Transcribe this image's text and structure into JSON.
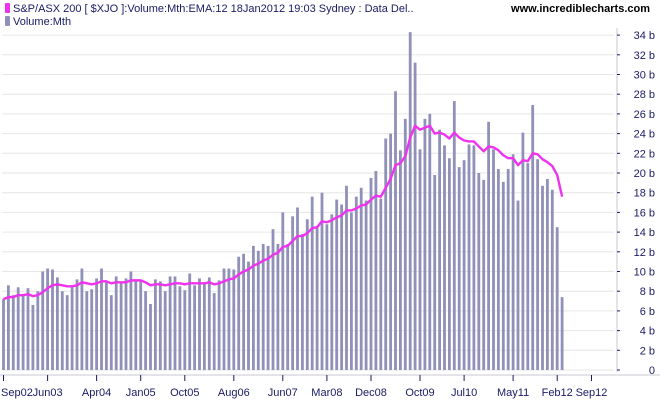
{
  "header": {
    "legend_line1": "S&P/ASX 200 [ $XJO ]:Volume:Mth:EMA:12   18Jan2012 19:03 Sydney : Data Del..",
    "legend_line2": "Volume:Mth",
    "watermark": "www.incrediblecharts.com"
  },
  "colors": {
    "bar": "#9090b8",
    "ema": "#ee33ee",
    "grid": "#e6e6e6",
    "axis_text": "#1a1a66",
    "tick_mark": "#1a1a66"
  },
  "chart_data": {
    "type": "bar",
    "ylabel": "",
    "xlabel": "",
    "ylim": [
      0,
      35
    ],
    "y_unit_suffix": " b",
    "yticks": [
      0,
      2,
      4,
      6,
      8,
      10,
      12,
      14,
      16,
      18,
      20,
      22,
      24,
      26,
      28,
      30,
      32,
      34
    ],
    "ytick_labels": [
      "0",
      "2 b",
      "4 b",
      "6 b",
      "8 b",
      "10 b",
      "12 b",
      "14 b",
      "16 b",
      "18 b",
      "20 b",
      "22 b",
      "24 b",
      "26 b",
      "28 b",
      "30 b",
      "32 b",
      "34 b"
    ],
    "xticks": [
      {
        "label": "Sep02",
        "index": 0
      },
      {
        "label": "Jun03",
        "index": 9
      },
      {
        "label": "Apr04",
        "index": 19
      },
      {
        "label": "Jan05",
        "index": 28
      },
      {
        "label": "Oct05",
        "index": 37
      },
      {
        "label": "Aug06",
        "index": 47
      },
      {
        "label": "Jun07",
        "index": 57
      },
      {
        "label": "Mar08",
        "index": 66
      },
      {
        "label": "Dec08",
        "index": 75
      },
      {
        "label": "Oct09",
        "index": 85
      },
      {
        "label": "Jul10",
        "index": 94
      },
      {
        "label": "May11",
        "index": 104
      },
      {
        "label": "Feb12",
        "index": 113
      },
      {
        "label": "Sep12",
        "index": 120
      }
    ],
    "grid": true,
    "series": [
      {
        "name": "Volume:Mth",
        "type": "bar",
        "values": [
          7.2,
          8.6,
          7.6,
          8.4,
          7.6,
          8.3,
          6.6,
          8.0,
          10.0,
          10.3,
          10.2,
          9.4,
          8.0,
          7.6,
          8.4,
          9.2,
          10.3,
          8.0,
          8.2,
          9.3,
          10.3,
          9.0,
          7.6,
          9.5,
          8.8,
          9.3,
          10.0,
          9.0,
          9.1,
          8.0,
          6.7,
          9.2,
          9.0,
          8.0,
          9.5,
          9.5,
          8.5,
          8.1,
          9.8,
          8.6,
          9.3,
          8.8,
          9.4,
          7.8,
          9.1,
          10.3,
          10.3,
          10.2,
          11.5,
          11.8,
          11.0,
          12.6,
          12.1,
          12.8,
          12.6,
          14.3,
          12.8,
          16.0,
          12.8,
          15.6,
          16.5,
          13.8,
          15.3,
          17.6,
          14.5,
          18.0,
          14.8,
          15.8,
          17.3,
          16.8,
          18.7,
          16.0,
          17.6,
          18.5,
          17.2,
          19.5,
          20.2,
          17.4,
          23.5,
          24.0,
          28.3,
          22.3,
          25.5,
          34.3,
          31.2,
          22.4,
          25.5,
          26.0,
          19.8,
          24.4,
          22.8,
          21.5,
          27.3,
          20.6,
          21.3,
          22.9,
          22.8,
          20.0,
          19.3,
          25.2,
          22.4,
          20.4,
          19.1,
          20.4,
          21.9,
          17.2,
          24.1,
          21.0,
          26.9,
          21.4,
          18.7,
          19.4,
          18.3,
          14.5,
          7.4
        ]
      },
      {
        "name": "S&P/ASX 200 [ $XJO ]:Volume:Mth:EMA:12",
        "type": "line",
        "values": [
          7.2,
          7.4,
          7.4,
          7.6,
          7.6,
          7.7,
          7.5,
          7.6,
          7.9,
          8.3,
          8.6,
          8.7,
          8.6,
          8.5,
          8.5,
          8.6,
          8.9,
          8.8,
          8.7,
          8.8,
          9.0,
          9.0,
          8.8,
          8.9,
          8.9,
          8.9,
          9.1,
          9.1,
          9.1,
          8.9,
          8.6,
          8.7,
          8.7,
          8.6,
          8.7,
          8.8,
          8.8,
          8.7,
          8.8,
          8.8,
          8.8,
          8.8,
          8.9,
          8.7,
          8.8,
          9.0,
          9.2,
          9.3,
          9.7,
          10.0,
          10.2,
          10.6,
          10.8,
          11.1,
          11.3,
          11.7,
          11.9,
          12.5,
          12.6,
          13.1,
          13.6,
          13.6,
          13.9,
          14.4,
          14.5,
          15.1,
          15.0,
          15.2,
          15.5,
          15.7,
          16.2,
          16.2,
          16.4,
          16.7,
          16.8,
          17.3,
          17.7,
          17.6,
          18.5,
          19.4,
          20.8,
          21.0,
          21.7,
          23.6,
          24.8,
          24.4,
          24.6,
          24.8,
          24.0,
          24.1,
          23.9,
          23.5,
          24.1,
          23.6,
          23.3,
          23.2,
          23.2,
          22.7,
          22.2,
          22.7,
          22.6,
          22.3,
          21.8,
          21.5,
          21.5,
          20.8,
          21.3,
          21.2,
          22.0,
          21.9,
          21.4,
          21.1,
          20.7,
          19.8,
          17.6
        ]
      }
    ]
  }
}
